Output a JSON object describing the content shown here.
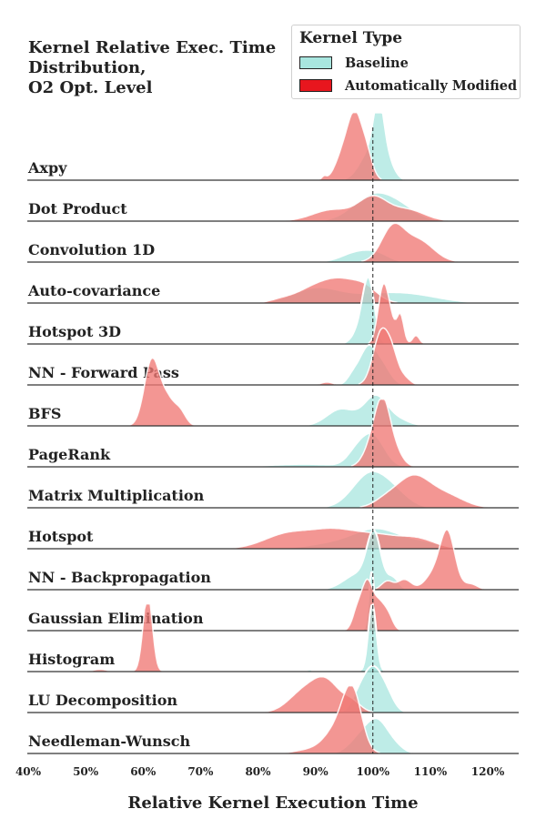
{
  "chart_data": {
    "type": "area",
    "title_lines": [
      "Kernel Relative Exec. Time",
      "Distribution,",
      "O2 Opt. Level"
    ],
    "xlabel": "Relative Kernel Execution Time",
    "x_ticks": [
      "40%",
      "50%",
      "60%",
      "70%",
      "80%",
      "90%",
      "100%",
      "110%",
      "120%"
    ],
    "x_tick_values": [
      40,
      50,
      60,
      70,
      80,
      90,
      100,
      110,
      120
    ],
    "xlim": [
      40,
      126
    ],
    "reference_line_x": 100,
    "legend": {
      "title": "Kernel Type",
      "placement": "top-right",
      "entries": [
        {
          "label": "Baseline",
          "color": "#a8e6df"
        },
        {
          "label": "Automatically Modified",
          "color": "#e8161e"
        }
      ]
    },
    "series_colors": {
      "baseline": "#a8e6df",
      "modified": "#f07874"
    },
    "rows": [
      {
        "label": "Axpy",
        "baseline": [
          [
            99.5,
            0.5,
            1.8
          ],
          [
            101,
            1.0,
            0.9
          ],
          [
            102.5,
            0.3,
            1.2
          ]
        ],
        "modified": [
          [
            97,
            1.0,
            1.2
          ],
          [
            95,
            0.5,
            1.4
          ],
          [
            99,
            0.4,
            1.0
          ],
          [
            91.5,
            0.06,
            0.4
          ]
        ]
      },
      {
        "label": "Dot Product",
        "baseline": [
          [
            100,
            0.45,
            3.5
          ],
          [
            105,
            0.18,
            3.0
          ]
        ],
        "modified": [
          [
            100,
            0.4,
            2.5
          ],
          [
            93,
            0.2,
            3.5
          ],
          [
            106,
            0.2,
            3.0
          ]
        ]
      },
      {
        "label": "Convolution 1D",
        "baseline": [
          [
            97.5,
            0.18,
            2.8
          ],
          [
            101,
            0.1,
            2.0
          ]
        ],
        "modified": [
          [
            103.5,
            0.62,
            2.0
          ],
          [
            107.5,
            0.3,
            2.2
          ],
          [
            110,
            0.12,
            2.2
          ]
        ]
      },
      {
        "label": "Auto-covariance",
        "baseline": [
          [
            90,
            0.25,
            4.0
          ],
          [
            101,
            0.15,
            6.0
          ],
          [
            108,
            0.08,
            5.0
          ]
        ],
        "modified": [
          [
            94.5,
            0.4,
            3.5
          ],
          [
            89,
            0.18,
            3.0
          ],
          [
            99,
            0.15,
            2.0
          ],
          [
            84,
            0.05,
            2.0
          ]
        ]
      },
      {
        "label": "Hotspot 3D",
        "baseline": [
          [
            99.3,
            1.0,
            1.0
          ],
          [
            98,
            0.3,
            1.3
          ]
        ],
        "modified": [
          [
            101.8,
            1.0,
            0.9
          ],
          [
            104.8,
            0.5,
            0.6
          ],
          [
            103.2,
            0.3,
            0.8
          ],
          [
            107.5,
            0.15,
            0.6
          ]
        ]
      },
      {
        "label": "NN - Forward Pass",
        "baseline": [
          [
            99,
            0.6,
            1.4
          ],
          [
            101.5,
            0.35,
            1.5
          ],
          [
            96.5,
            0.15,
            1.0
          ]
        ],
        "modified": [
          [
            101.5,
            0.95,
            1.4
          ],
          [
            103.5,
            0.35,
            1.0
          ],
          [
            105.5,
            0.12,
            1.0
          ],
          [
            92,
            0.05,
            1.0
          ]
        ]
      },
      {
        "label": "BFS",
        "baseline": [
          [
            100.5,
            0.52,
            2.0
          ],
          [
            94.5,
            0.3,
            2.5
          ],
          [
            104.5,
            0.1,
            2.0
          ]
        ],
        "modified": [
          [
            61.5,
            1.15,
            1.3
          ],
          [
            64.2,
            0.45,
            1.3
          ],
          [
            66.5,
            0.22,
            1.0
          ]
        ]
      },
      {
        "label": "PageRank",
        "baseline": [
          [
            100,
            0.55,
            2.0
          ],
          [
            97,
            0.2,
            1.6
          ],
          [
            88,
            0.05,
            6.0
          ]
        ],
        "modified": [
          [
            101.8,
            1.0,
            1.3
          ],
          [
            100,
            0.4,
            1.5
          ],
          [
            104,
            0.22,
            1.3
          ]
        ]
      },
      {
        "label": "Matrix Multiplication",
        "baseline": [
          [
            99.5,
            0.6,
            3.0
          ],
          [
            104,
            0.2,
            2.5
          ]
        ],
        "modified": [
          [
            107,
            0.55,
            3.0
          ],
          [
            113,
            0.2,
            3.0
          ],
          [
            102,
            0.1,
            2.0
          ]
        ]
      },
      {
        "label": "Hotspot",
        "baseline": [
          [
            101,
            0.32,
            4.0
          ],
          [
            94,
            0.1,
            5.0
          ],
          [
            109,
            0.1,
            3.0
          ]
        ],
        "modified": [
          [
            85,
            0.25,
            4.0
          ],
          [
            93,
            0.3,
            4.0
          ],
          [
            101,
            0.22,
            4.0
          ],
          [
            108,
            0.15,
            3.0
          ]
        ]
      },
      {
        "label": "NN - Backpropagation",
        "baseline": [
          [
            100.2,
            0.9,
            1.2
          ],
          [
            97.5,
            0.28,
            2.5
          ],
          [
            103.5,
            0.2,
            1.0
          ]
        ],
        "modified": [
          [
            113,
            1.0,
            1.3
          ],
          [
            110.5,
            0.25,
            1.5
          ],
          [
            105.5,
            0.18,
            1.2
          ],
          [
            102.5,
            0.15,
            1.0
          ],
          [
            117,
            0.1,
            1.2
          ]
        ]
      },
      {
        "label": "Gaussian Elimination",
        "baseline": [
          [
            99.8,
            1.05,
            0.5
          ]
        ],
        "modified": [
          [
            99,
            0.85,
            1.0
          ],
          [
            101.2,
            0.45,
            1.0
          ],
          [
            97.2,
            0.3,
            0.8
          ],
          [
            102.8,
            0.2,
            0.8
          ]
        ]
      },
      {
        "label": "Histogram",
        "baseline": [
          [
            99.9,
            1.2,
            0.7
          ],
          [
            89,
            0.04,
            0.3
          ]
        ],
        "modified": [
          [
            60.8,
            1.4,
            0.8
          ],
          [
            52.5,
            0.04,
            1.2
          ]
        ]
      },
      {
        "label": "LU Decomposition",
        "baseline": [
          [
            100,
            0.75,
            1.6
          ],
          [
            97.5,
            0.25,
            1.3
          ],
          [
            102.5,
            0.25,
            1.3
          ]
        ],
        "modified": [
          [
            91.8,
            0.55,
            2.5
          ],
          [
            87.5,
            0.3,
            2.5
          ],
          [
            96.5,
            0.15,
            1.5
          ]
        ]
      },
      {
        "label": "Needleman-Wunsch",
        "baseline": [
          [
            101,
            0.5,
            1.8
          ],
          [
            98,
            0.3,
            2.0
          ],
          [
            104,
            0.1,
            1.5
          ]
        ],
        "modified": [
          [
            96.5,
            0.95,
            1.6
          ],
          [
            94.5,
            0.4,
            2.0
          ],
          [
            92,
            0.15,
            2.0
          ],
          [
            88,
            0.05,
            2.0
          ]
        ]
      }
    ]
  }
}
